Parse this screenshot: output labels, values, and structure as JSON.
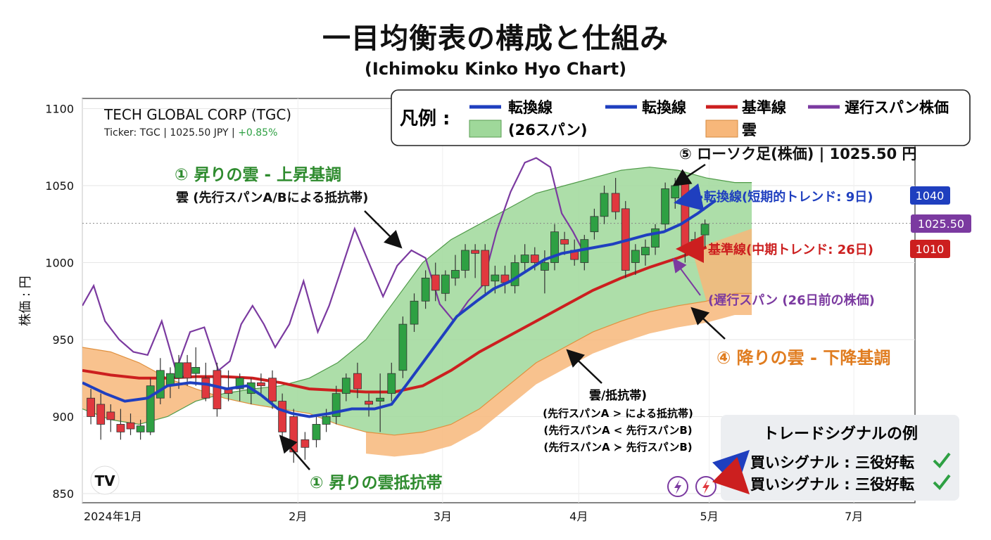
{
  "title": "一目均衡表の構成と仕組み",
  "subtitle": "(Ichimoku Kinko Hyo Chart)",
  "chart_data": {
    "type": "candlestick",
    "ylabel": "株価 : 円",
    "ylim": [
      845,
      1112
    ],
    "yticks": [
      850,
      900,
      950,
      1000,
      1050,
      1100
    ],
    "xlim": [
      0,
      34
    ],
    "xticks": [
      {
        "label": "2024年1月",
        "x": 0
      },
      {
        "label": "2月",
        "x": 7.6
      },
      {
        "label": "3月",
        "x": 12.7
      },
      {
        "label": "4月",
        "x": 17.5
      },
      {
        "label": "5月",
        "x": 22.1
      },
      {
        "label": "7月",
        "x": 27.2
      }
    ],
    "grid": true,
    "last_price_line": 1025.5,
    "company": "TECH GLOBAL CORP (TGC)",
    "ticker_line": "Ticker: TGC | 1025.50 JPY | ",
    "change": "+0.85%",
    "colors": {
      "up": "#2ea043",
      "down": "#e0383e",
      "tenkan": "#1f3fbf",
      "kijun": "#cc1f1f",
      "chikou": "#7b3aa0",
      "cloud_bull": "#9fd89a",
      "cloud_bear": "#f7b77a"
    },
    "candles": [
      {
        "x": 0.3,
        "o": 912,
        "h": 918,
        "l": 895,
        "c": 900
      },
      {
        "x": 0.65,
        "o": 908,
        "h": 915,
        "l": 885,
        "c": 895
      },
      {
        "x": 1.0,
        "o": 903,
        "h": 908,
        "l": 890,
        "c": 898
      },
      {
        "x": 1.35,
        "o": 895,
        "h": 905,
        "l": 885,
        "c": 890
      },
      {
        "x": 1.7,
        "o": 896,
        "h": 902,
        "l": 888,
        "c": 892
      },
      {
        "x": 2.05,
        "o": 890,
        "h": 898,
        "l": 885,
        "c": 894
      },
      {
        "x": 2.4,
        "o": 890,
        "h": 925,
        "l": 888,
        "c": 920
      },
      {
        "x": 2.75,
        "o": 912,
        "h": 938,
        "l": 908,
        "c": 930
      },
      {
        "x": 3.1,
        "o": 920,
        "h": 932,
        "l": 912,
        "c": 928
      },
      {
        "x": 3.4,
        "o": 925,
        "h": 940,
        "l": 918,
        "c": 935
      },
      {
        "x": 3.7,
        "o": 935,
        "h": 940,
        "l": 920,
        "c": 925
      },
      {
        "x": 4.0,
        "o": 928,
        "h": 945,
        "l": 920,
        "c": 932
      },
      {
        "x": 4.35,
        "o": 925,
        "h": 935,
        "l": 910,
        "c": 912
      },
      {
        "x": 4.75,
        "o": 930,
        "h": 935,
        "l": 900,
        "c": 905
      },
      {
        "x": 5.15,
        "o": 918,
        "h": 930,
        "l": 910,
        "c": 915
      },
      {
        "x": 5.55,
        "o": 918,
        "h": 928,
        "l": 910,
        "c": 925
      },
      {
        "x": 5.95,
        "o": 915,
        "h": 925,
        "l": 908,
        "c": 922
      },
      {
        "x": 6.3,
        "o": 922,
        "h": 928,
        "l": 915,
        "c": 920
      },
      {
        "x": 6.7,
        "o": 925,
        "h": 930,
        "l": 905,
        "c": 910
      },
      {
        "x": 7.05,
        "o": 910,
        "h": 915,
        "l": 882,
        "c": 890
      },
      {
        "x": 7.45,
        "o": 900,
        "h": 905,
        "l": 870,
        "c": 877
      },
      {
        "x": 7.85,
        "o": 885,
        "h": 890,
        "l": 872,
        "c": 880
      },
      {
        "x": 8.25,
        "o": 885,
        "h": 900,
        "l": 880,
        "c": 895
      },
      {
        "x": 8.6,
        "o": 895,
        "h": 905,
        "l": 890,
        "c": 900
      },
      {
        "x": 8.95,
        "o": 900,
        "h": 920,
        "l": 895,
        "c": 915
      },
      {
        "x": 9.3,
        "o": 915,
        "h": 928,
        "l": 910,
        "c": 925
      },
      {
        "x": 9.7,
        "o": 928,
        "h": 935,
        "l": 912,
        "c": 918
      },
      {
        "x": 10.1,
        "o": 910,
        "h": 915,
        "l": 900,
        "c": 908
      },
      {
        "x": 10.5,
        "o": 910,
        "h": 928,
        "l": 890,
        "c": 912
      },
      {
        "x": 10.9,
        "o": 915,
        "h": 935,
        "l": 910,
        "c": 928
      },
      {
        "x": 11.3,
        "o": 930,
        "h": 965,
        "l": 925,
        "c": 960
      },
      {
        "x": 11.7,
        "o": 960,
        "h": 980,
        "l": 955,
        "c": 975
      },
      {
        "x": 12.1,
        "o": 975,
        "h": 995,
        "l": 970,
        "c": 990
      },
      {
        "x": 12.45,
        "o": 992,
        "h": 1000,
        "l": 975,
        "c": 982
      },
      {
        "x": 12.8,
        "o": 980,
        "h": 995,
        "l": 975,
        "c": 992
      },
      {
        "x": 13.15,
        "o": 990,
        "h": 1005,
        "l": 985,
        "c": 995
      },
      {
        "x": 13.5,
        "o": 995,
        "h": 1012,
        "l": 990,
        "c": 1008
      },
      {
        "x": 13.85,
        "o": 1008,
        "h": 1012,
        "l": 990,
        "c": 1006
      },
      {
        "x": 14.2,
        "o": 1008,
        "h": 1012,
        "l": 980,
        "c": 985
      },
      {
        "x": 14.55,
        "o": 988,
        "h": 998,
        "l": 980,
        "c": 992
      },
      {
        "x": 14.9,
        "o": 992,
        "h": 998,
        "l": 980,
        "c": 987
      },
      {
        "x": 15.25,
        "o": 985,
        "h": 1005,
        "l": 980,
        "c": 1000
      },
      {
        "x": 15.6,
        "o": 1000,
        "h": 1012,
        "l": 995,
        "c": 1005
      },
      {
        "x": 15.95,
        "o": 1005,
        "h": 1010,
        "l": 995,
        "c": 1000
      },
      {
        "x": 16.3,
        "o": 995,
        "h": 1008,
        "l": 980,
        "c": 1000
      },
      {
        "x": 16.65,
        "o": 1000,
        "h": 1025,
        "l": 995,
        "c": 1020
      },
      {
        "x": 17.0,
        "o": 1015,
        "h": 1020,
        "l": 1005,
        "c": 1012
      },
      {
        "x": 17.35,
        "o": 1008,
        "h": 1015,
        "l": 998,
        "c": 1002
      },
      {
        "x": 17.7,
        "o": 1000,
        "h": 1018,
        "l": 995,
        "c": 1015
      },
      {
        "x": 18.05,
        "o": 1020,
        "h": 1035,
        "l": 1015,
        "c": 1030
      },
      {
        "x": 18.4,
        "o": 1030,
        "h": 1050,
        "l": 1025,
        "c": 1045
      },
      {
        "x": 18.8,
        "o": 1045,
        "h": 1055,
        "l": 1028,
        "c": 1033
      },
      {
        "x": 19.15,
        "o": 1035,
        "h": 1040,
        "l": 990,
        "c": 995
      },
      {
        "x": 19.5,
        "o": 1000,
        "h": 1012,
        "l": 992,
        "c": 1008
      },
      {
        "x": 19.85,
        "o": 1005,
        "h": 1015,
        "l": 998,
        "c": 1010
      },
      {
        "x": 20.2,
        "o": 1010,
        "h": 1025,
        "l": 1005,
        "c": 1022
      },
      {
        "x": 20.55,
        "o": 1025,
        "h": 1052,
        "l": 1020,
        "c": 1048
      },
      {
        "x": 20.9,
        "o": 1042,
        "h": 1055,
        "l": 1035,
        "c": 1050
      },
      {
        "x": 21.25,
        "o": 1053,
        "h": 1058,
        "l": 1000,
        "c": 1010
      },
      {
        "x": 21.6,
        "o": 1010,
        "h": 1020,
        "l": 1005,
        "c": 1015
      },
      {
        "x": 21.95,
        "o": 1018,
        "h": 1028,
        "l": 1010,
        "c": 1025
      }
    ],
    "tenkan": [
      [
        0,
        922
      ],
      [
        0.8,
        915
      ],
      [
        1.5,
        910
      ],
      [
        2.3,
        912
      ],
      [
        3.0,
        920
      ],
      [
        3.8,
        922
      ],
      [
        4.4,
        921
      ],
      [
        5.1,
        918
      ],
      [
        5.8,
        920
      ],
      [
        6.3,
        914
      ],
      [
        6.9,
        905
      ],
      [
        7.4,
        902
      ],
      [
        8.0,
        900
      ],
      [
        8.7,
        902
      ],
      [
        9.5,
        905
      ],
      [
        10.3,
        905
      ],
      [
        10.9,
        908
      ],
      [
        11.4,
        920
      ],
      [
        12.0,
        935
      ],
      [
        12.6,
        950
      ],
      [
        13.2,
        965
      ],
      [
        13.9,
        975
      ],
      [
        14.5,
        983
      ],
      [
        15.1,
        988
      ],
      [
        15.7,
        995
      ],
      [
        16.3,
        1002
      ],
      [
        16.9,
        1006
      ],
      [
        17.5,
        1008
      ],
      [
        18.1,
        1010
      ],
      [
        18.7,
        1012
      ],
      [
        19.3,
        1015
      ],
      [
        19.9,
        1018
      ],
      [
        20.5,
        1020
      ],
      [
        21.1,
        1025
      ],
      [
        21.7,
        1032
      ],
      [
        22.3,
        1040
      ]
    ],
    "kijun": [
      [
        0,
        930
      ],
      [
        1.0,
        927
      ],
      [
        2.0,
        925
      ],
      [
        3.0,
        925
      ],
      [
        4.0,
        926
      ],
      [
        5.0,
        926
      ],
      [
        6.0,
        925
      ],
      [
        7.0,
        922
      ],
      [
        8.0,
        918
      ],
      [
        9.0,
        917
      ],
      [
        10.0,
        916
      ],
      [
        11.0,
        916
      ],
      [
        12.0,
        920
      ],
      [
        13.0,
        930
      ],
      [
        14.0,
        942
      ],
      [
        15.0,
        952
      ],
      [
        16.0,
        962
      ],
      [
        17.0,
        972
      ],
      [
        18.0,
        982
      ],
      [
        19.0,
        990
      ],
      [
        20.0,
        997
      ],
      [
        21.0,
        1003
      ],
      [
        22.0,
        1010
      ]
    ],
    "chikou": [
      [
        0,
        972
      ],
      [
        0.4,
        985
      ],
      [
        0.8,
        962
      ],
      [
        1.3,
        950
      ],
      [
        1.8,
        942
      ],
      [
        2.3,
        940
      ],
      [
        2.8,
        962
      ],
      [
        3.3,
        930
      ],
      [
        3.8,
        955
      ],
      [
        4.3,
        958
      ],
      [
        4.8,
        930
      ],
      [
        5.2,
        936
      ],
      [
        5.6,
        960
      ],
      [
        6.0,
        972
      ],
      [
        6.4,
        960
      ],
      [
        6.8,
        945
      ],
      [
        7.3,
        960
      ],
      [
        7.8,
        988
      ],
      [
        8.3,
        955
      ],
      [
        8.7,
        972
      ],
      [
        9.1,
        994
      ],
      [
        9.6,
        1022
      ],
      [
        10.1,
        1000
      ],
      [
        10.6,
        978
      ],
      [
        11.1,
        998
      ],
      [
        11.6,
        1008
      ],
      [
        12.1,
        1003
      ],
      [
        12.6,
        973
      ],
      [
        13.1,
        962
      ],
      [
        13.6,
        975
      ],
      [
        14.1,
        985
      ],
      [
        14.6,
        1020
      ],
      [
        15.1,
        1046
      ],
      [
        15.6,
        1065
      ],
      [
        16.0,
        1068
      ],
      [
        16.5,
        1062
      ],
      [
        16.9,
        1032
      ],
      [
        17.3,
        1020
      ],
      [
        17.7,
        1006
      ]
    ],
    "span_a": [
      [
        0,
        905
      ],
      [
        1,
        898
      ],
      [
        2,
        895
      ],
      [
        3,
        900
      ],
      [
        4,
        910
      ],
      [
        5,
        915
      ],
      [
        6,
        918
      ],
      [
        7,
        920
      ],
      [
        8,
        925
      ],
      [
        9,
        935
      ],
      [
        10,
        950
      ],
      [
        11,
        975
      ],
      [
        12,
        1000
      ],
      [
        13,
        1015
      ],
      [
        14,
        1025
      ],
      [
        15,
        1035
      ],
      [
        16,
        1045
      ],
      [
        17,
        1050
      ],
      [
        18,
        1055
      ],
      [
        19,
        1060
      ],
      [
        20,
        1062
      ],
      [
        21,
        1060
      ],
      [
        22,
        1055
      ],
      [
        23,
        1052
      ],
      [
        23.6,
        1052
      ]
    ],
    "span_b": [
      [
        0,
        945
      ],
      [
        1,
        942
      ],
      [
        2,
        935
      ],
      [
        3,
        925
      ],
      [
        4,
        918
      ],
      [
        5,
        912
      ],
      [
        6,
        908
      ],
      [
        7,
        905
      ],
      [
        8,
        902
      ],
      [
        9,
        895
      ],
      [
        10,
        890
      ],
      [
        11,
        888
      ],
      [
        12,
        890
      ],
      [
        13,
        895
      ],
      [
        14,
        905
      ],
      [
        15,
        920
      ],
      [
        16,
        935
      ],
      [
        17,
        945
      ],
      [
        18,
        955
      ],
      [
        19,
        962
      ],
      [
        20,
        968
      ],
      [
        21,
        972
      ],
      [
        22,
        975
      ],
      [
        23,
        980
      ],
      [
        23.6,
        980
      ]
    ],
    "span_b_ext": [
      [
        21.5,
        1008
      ],
      [
        22.5,
        1015
      ],
      [
        23.6,
        1022
      ]
    ],
    "annotations": {
      "bull_cloud_title": "① 昇りの雲 - 上昇基調",
      "bull_cloud_sub": "雲 (先行スパンA/Bによる抵抗帯)",
      "bull_support": "① 昇りの雲抵抗帯",
      "bear_cloud": "④ 降りの雲 - 下降基調",
      "candle_label": "⑤ ローソク足(株価) | 1025.50 円",
      "tenkan_label": "転換線(短期的トレンド: 9日)",
      "kijun_label": "基準線(中期トレンド: 26日)",
      "chikou_label": "(遅行スパン (26日前の株価)",
      "cloud_note": [
        "雲/抵抗帯)",
        "(先行スパンA > による抵抗帯)",
        "(先行スパンA < 先行スパンB)",
        "(先行スパンA ≻ 先行スパンB)"
      ]
    },
    "price_tags": {
      "tenkan": "1040",
      "last": "1025.50",
      "kijun": "1010"
    },
    "legend": {
      "title": "凡例 :",
      "items": [
        {
          "label": "転換線",
          "kind": "line",
          "color": "#1f3fbf"
        },
        {
          "label": "転換線",
          "kind": "line",
          "color": "#1f3fbf"
        },
        {
          "label": "基準線",
          "kind": "line",
          "color": "#cc1f1f"
        },
        {
          "label": "遅行スパン株価",
          "kind": "line",
          "color": "#7b3aa0"
        },
        {
          "label": "(26スパン)",
          "kind": "box",
          "color": "#9fd89a"
        },
        {
          "label": "雲",
          "kind": "box",
          "color": "#f7b77a"
        }
      ],
      "placement": "top-right"
    },
    "signals": {
      "title": "トレードシグナルの例",
      "items": [
        {
          "text": "買いシグナル : 三役好転",
          "direction": "up"
        },
        {
          "text": "買いシグナル : 三役好転",
          "direction": "down"
        }
      ]
    },
    "logo_text": "TV"
  }
}
